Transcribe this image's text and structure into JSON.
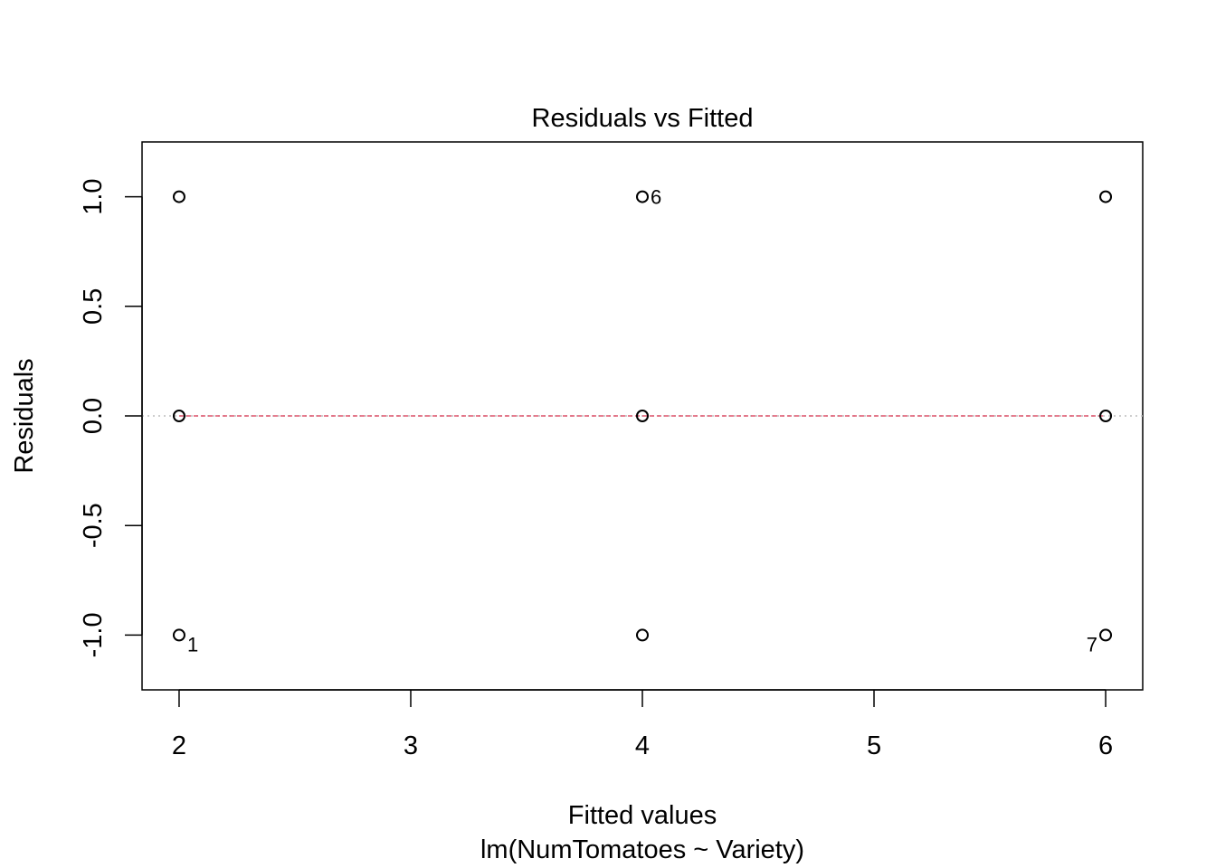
{
  "chart_data": {
    "type": "scatter",
    "title": "Residuals vs Fitted",
    "xlabel": "Fitted values",
    "sublabel": "lm(NumTomatoes ~ Variety)",
    "ylabel": "Residuals",
    "xlim": [
      1.84,
      6.16
    ],
    "ylim": [
      -1.25,
      1.25
    ],
    "x_ticks": [
      2,
      3,
      4,
      5,
      6
    ],
    "x_tick_labels": [
      "2",
      "3",
      "4",
      "5",
      "6"
    ],
    "y_ticks": [
      -1.0,
      -0.5,
      0.0,
      0.5,
      1.0
    ],
    "y_tick_labels": [
      "-1.0",
      "-0.5",
      "0.0",
      "0.5",
      "1.0"
    ],
    "points": [
      {
        "x": 2,
        "y": 1
      },
      {
        "x": 2,
        "y": 0
      },
      {
        "x": 2,
        "y": -1,
        "label": "1"
      },
      {
        "x": 4,
        "y": 1,
        "label": "6"
      },
      {
        "x": 4,
        "y": 0
      },
      {
        "x": 4,
        "y": -1
      },
      {
        "x": 6,
        "y": 1
      },
      {
        "x": 6,
        "y": 0
      },
      {
        "x": 6,
        "y": -1,
        "label": "7"
      }
    ],
    "reference_line": {
      "y": 0,
      "style": "dotted",
      "color": "#bebebe"
    },
    "smooth_line": {
      "x": [
        2,
        4,
        6
      ],
      "y": [
        0,
        0,
        0
      ],
      "style": "dashed",
      "color": "#df536b"
    },
    "grid": false,
    "legend": "none"
  }
}
